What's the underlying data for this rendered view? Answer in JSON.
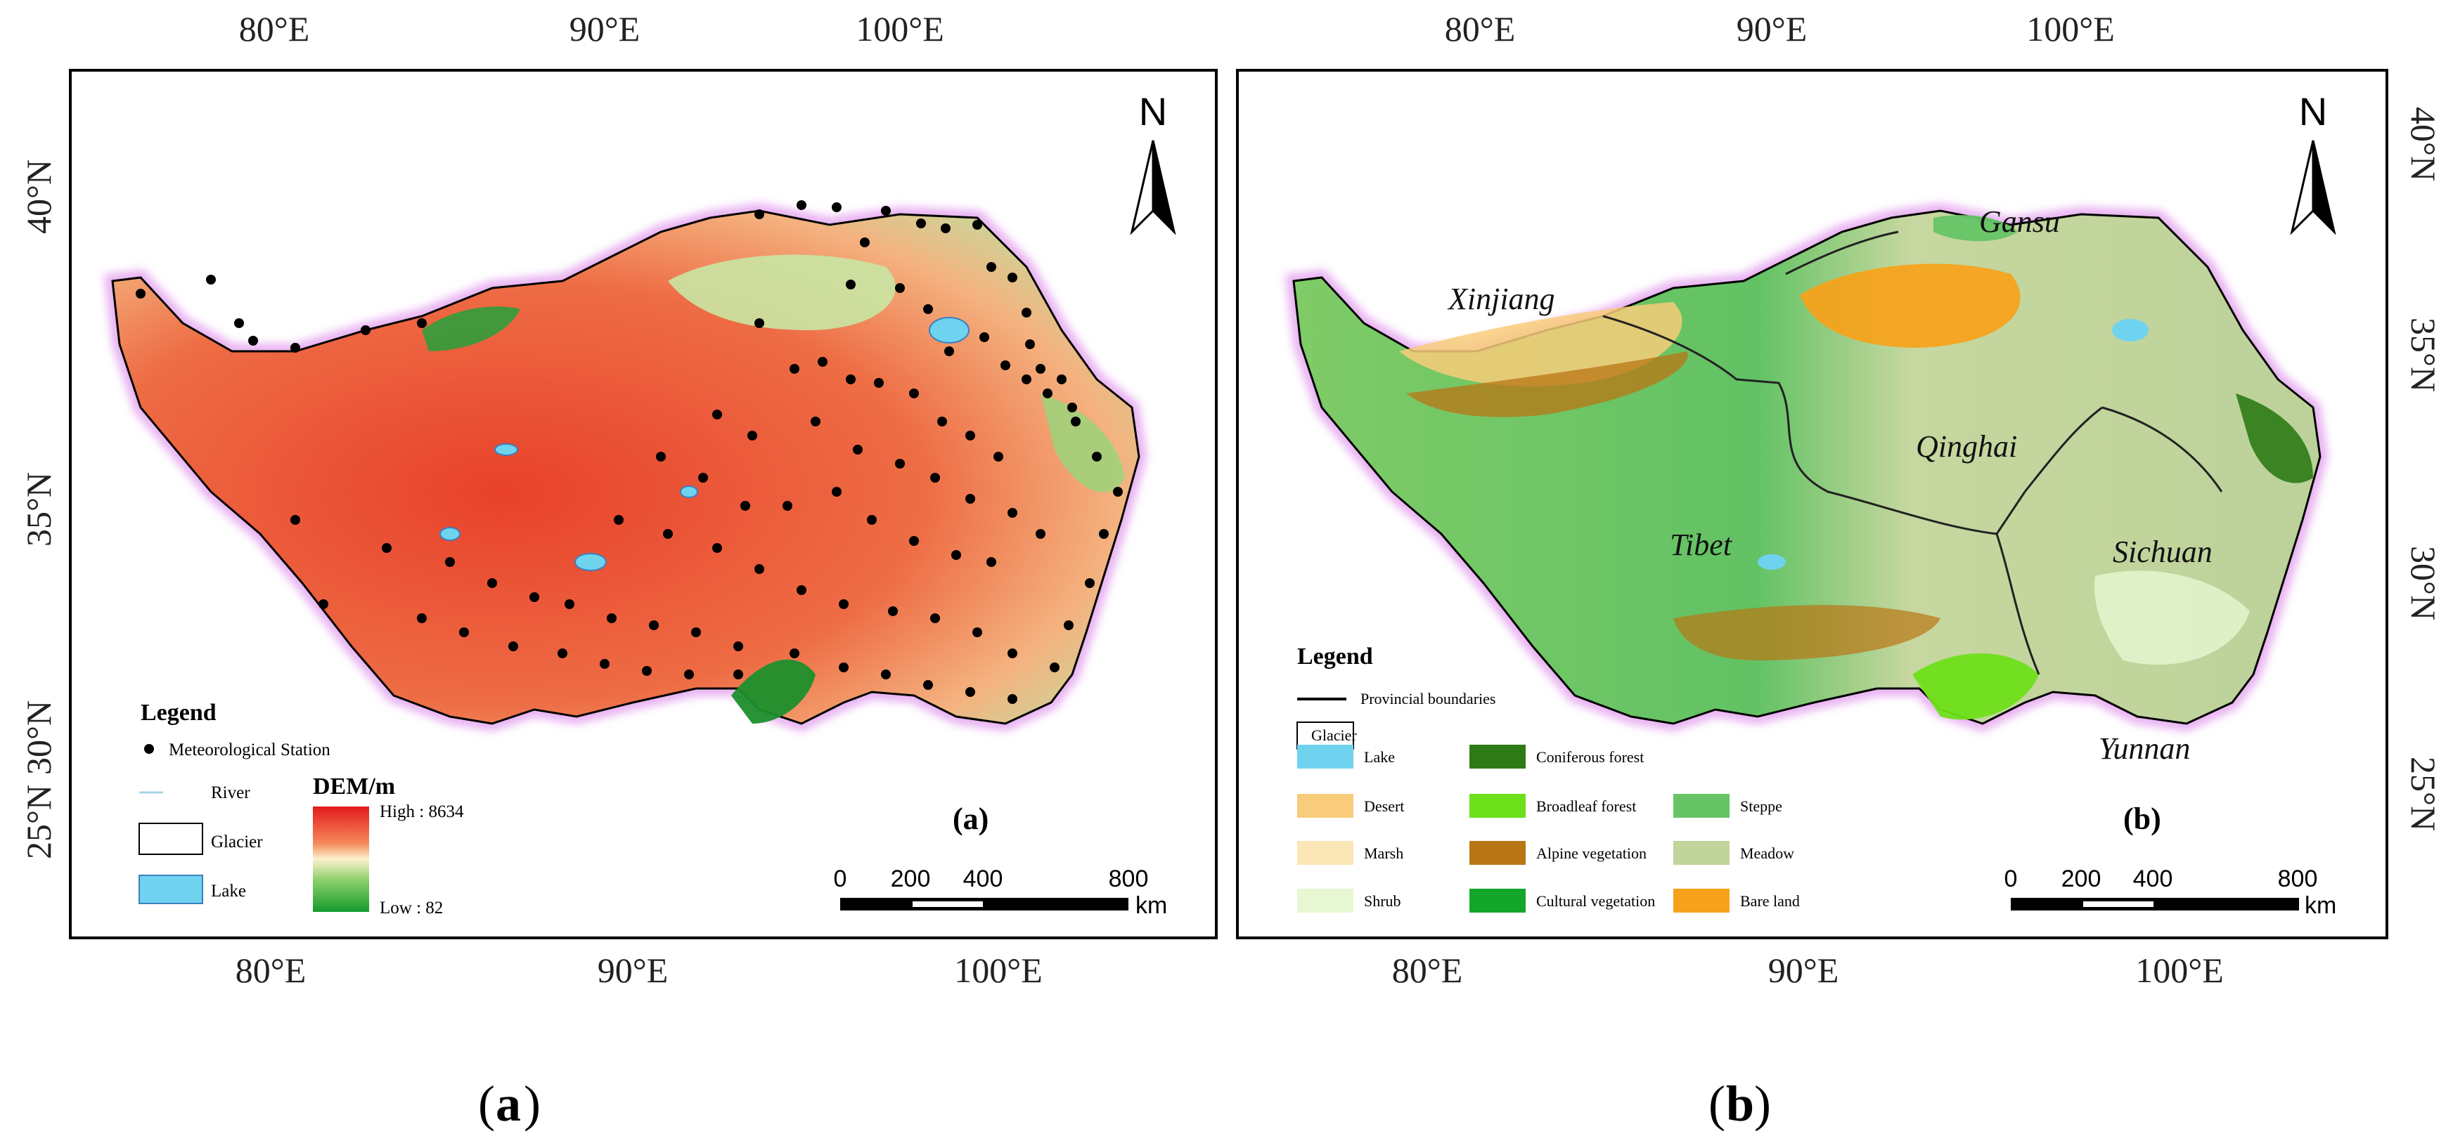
{
  "panels": [
    {
      "id": "a",
      "top_lon_labels": [
        "80°E",
        "90°E",
        "100°E"
      ],
      "bottom_lon_labels": [
        "80°E",
        "90°E",
        "100°E"
      ],
      "lat_labels": [
        "40°N",
        "35°N",
        "30°N",
        "25°N"
      ],
      "north_label": "N",
      "legend_title": "Legend",
      "legend_items": [
        {
          "label": "Meteorological Station",
          "symbol": "dot"
        },
        {
          "label": "River",
          "symbol": "line",
          "color": "#a9d3e6"
        },
        {
          "label": "Glacier",
          "symbol": "box",
          "color": "#ffffff"
        },
        {
          "label": "Lake",
          "symbol": "box",
          "color": "#6fd3f0"
        }
      ],
      "dem": {
        "title": "DEM/m",
        "high": "High : 8634",
        "low": "Low : 82"
      },
      "scale": {
        "ticks": [
          "0",
          "200",
          "400",
          "800"
        ],
        "unit": "km"
      },
      "tag": "(a)",
      "caption": "a"
    },
    {
      "id": "b",
      "top_lon_labels": [
        "80°E",
        "90°E",
        "100°E"
      ],
      "bottom_lon_labels": [
        "80°E",
        "90°E",
        "100°E"
      ],
      "lat_labels": [
        "40°N",
        "35°N",
        "30°N",
        "25°N"
      ],
      "north_label": "N",
      "provinces": [
        "Xinjiang",
        "Gansu",
        "Qinghai",
        "Tibet",
        "Sichuan",
        "Yunnan"
      ],
      "legend_title": "Legend",
      "legend_boundary": "Provincial boundaries",
      "legend_glacier": "Glacier",
      "legend_classes": [
        {
          "label": "Lake",
          "color": "#6fd3f0"
        },
        {
          "label": "Desert",
          "color": "#f8cc7a"
        },
        {
          "label": "Marsh",
          "color": "#fbe6b6"
        },
        {
          "label": "Shrub",
          "color": "#e6f7d2"
        },
        {
          "label": "Coniferous forest",
          "color": "#2e7a16"
        },
        {
          "label": "Broadleaf forest",
          "color": "#6ee01a"
        },
        {
          "label": "Alpine vegetation",
          "color": "#b97614"
        },
        {
          "label": "Cultural vegetation",
          "color": "#14a62a"
        },
        {
          "label": "Steppe",
          "color": "#66c466"
        },
        {
          "label": "Meadow",
          "color": "#c1d49a"
        },
        {
          "label": "Bare land",
          "color": "#f7a21a"
        }
      ],
      "scale": {
        "ticks": [
          "0",
          "200",
          "400",
          "800"
        ],
        "unit": "km"
      },
      "tag": "(b)",
      "caption": "b"
    }
  ]
}
